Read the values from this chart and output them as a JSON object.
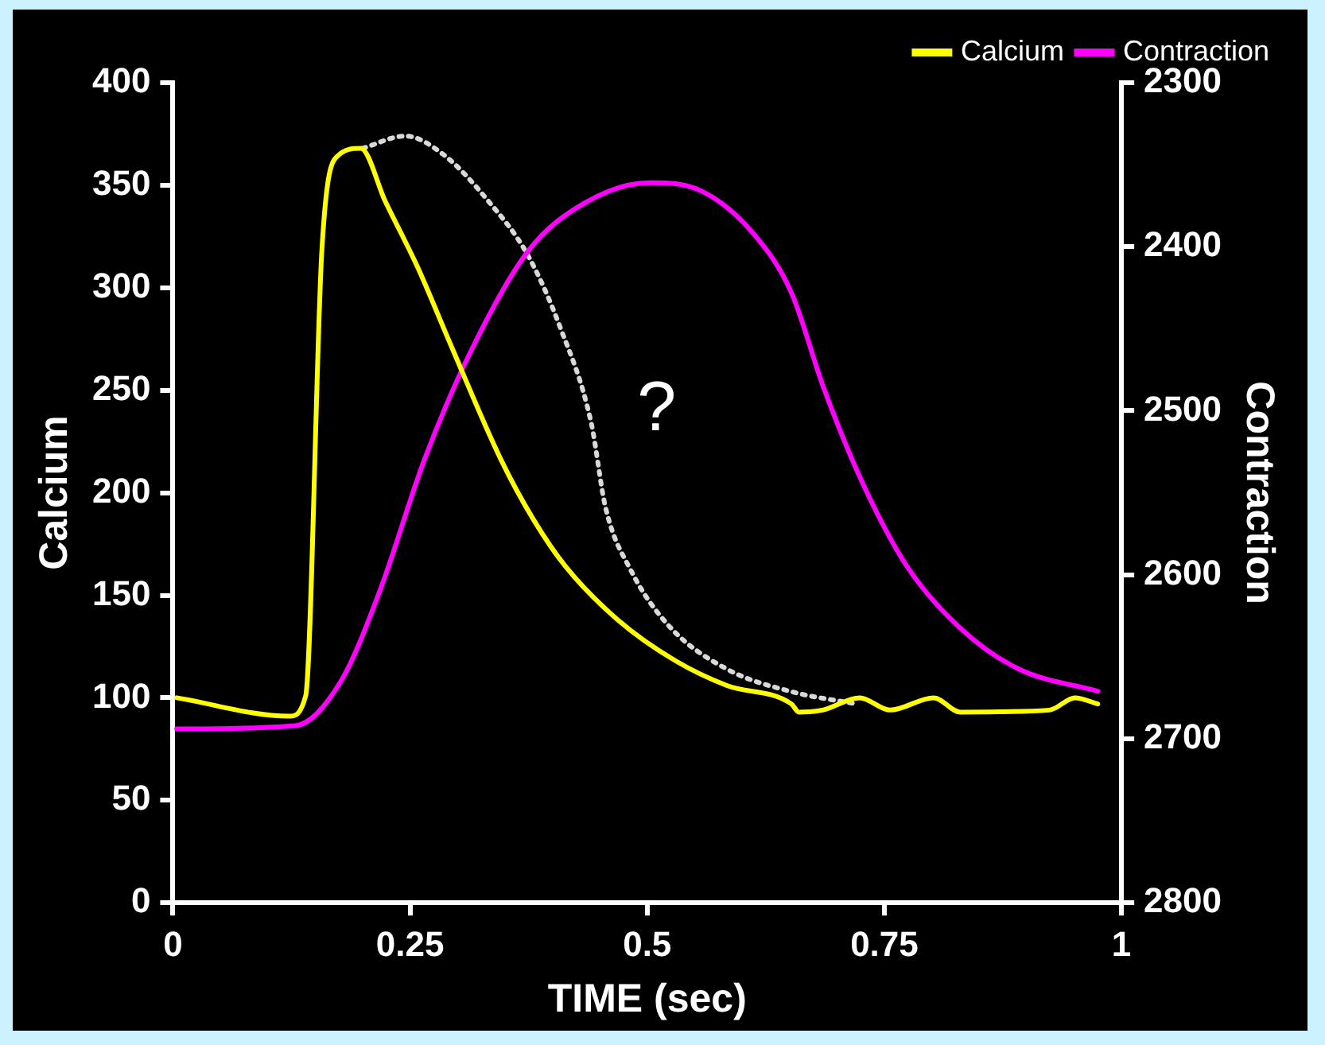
{
  "chart_data": {
    "type": "line",
    "xlabel": "TIME (sec)",
    "ylabel": "Calcium",
    "y2label": "Contraction",
    "xlim": [
      0,
      1
    ],
    "xticks": [
      0,
      0.25,
      0.5,
      0.75,
      1
    ],
    "ylim": [
      0,
      400
    ],
    "yticks": [
      0,
      50,
      100,
      150,
      200,
      250,
      300,
      350,
      400
    ],
    "y2lim": [
      2800,
      2300
    ],
    "y2ticks": [
      2300,
      2400,
      2500,
      2600,
      2700,
      2800
    ],
    "grid": false,
    "legend": "top right",
    "marker": "none",
    "annotations": [
      "?"
    ],
    "series": [
      {
        "name": "Calcium",
        "color": "#ffff00",
        "line_style": "solid",
        "x": [
          0.004,
          0.123,
          0.14,
          0.157,
          0.173,
          0.198,
          0.224,
          0.258,
          0.293,
          0.346,
          0.38,
          0.414,
          0.469,
          0.53,
          0.584,
          0.652,
          0.66,
          0.685,
          0.724,
          0.756,
          0.802,
          0.83,
          0.924,
          0.951,
          0.975
        ],
        "values": [
          100,
          91,
          101,
          318,
          364,
          368,
          342,
          310,
          272,
          216,
          187,
          164,
          138,
          118,
          106,
          97,
          93,
          94,
          100,
          94,
          100,
          93,
          94,
          100,
          97
        ]
      },
      {
        "name": "Contraction",
        "color": "#ff00ff",
        "line_style": "solid",
        "axis": "y2",
        "x": [
          0.004,
          0.129,
          0.177,
          0.218,
          0.265,
          0.313,
          0.374,
          0.435,
          0.503,
          0.557,
          0.612,
          0.652,
          0.686,
          0.727,
          0.774,
          0.829,
          0.89,
          0.975
        ],
        "values": [
          2694,
          2692,
          2665,
          2610,
          2530,
          2465,
          2403,
          2373,
          2361,
          2366,
          2392,
          2428,
          2486,
          2544,
          2595,
          2632,
          2657,
          2671
        ]
      },
      {
        "color": "#d9d9d9",
        "line_style": "dotted",
        "x": [
          0.2,
          0.245,
          0.285,
          0.333,
          0.374,
          0.408,
          0.441,
          0.456,
          0.483,
          0.523,
          0.584,
          0.652,
          0.72
        ],
        "values": [
          368,
          374,
          365,
          342,
          316,
          281,
          234,
          193,
          162,
          135,
          114,
          103,
          97
        ]
      }
    ]
  }
}
